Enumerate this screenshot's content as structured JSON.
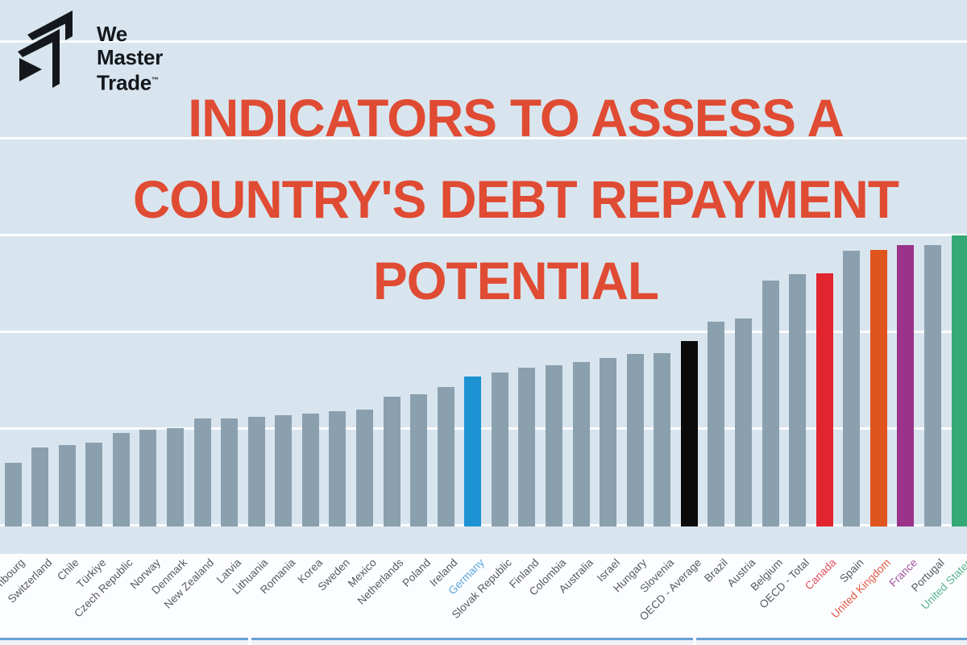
{
  "logo": {
    "word1": "We",
    "word2": "Master",
    "word3": "Trade",
    "tm": "™"
  },
  "title": {
    "line1": "INDICATORS TO ASSESS A",
    "line2": "COUNTRY'S DEBT REPAYMENT",
    "line3": "POTENTIAL",
    "color": "#e04b33"
  },
  "chart_data": {
    "type": "bar",
    "title": "",
    "xlabel": "",
    "ylabel": "",
    "grid": "horizontal white gridlines, unlabeled; y-axis tick labels not visible in the cropped image",
    "axis_note": "values estimated in gridline units: 1 unit = one gridline spacing, baseline = 0",
    "ylim": [
      0,
      3.2
    ],
    "legend_position": "none",
    "categories": [
      "Luxembourg",
      "Switzerland",
      "Chile",
      "Türkiye",
      "Czech Republic",
      "Norway",
      "Denmark",
      "New Zealand",
      "Latvia",
      "Lithuania",
      "Romania",
      "Korea",
      "Sweden",
      "Mexico",
      "Netherlands",
      "Poland",
      "Ireland",
      "Germany",
      "Slovak Republic",
      "Finland",
      "Colombia",
      "Australia",
      "Israel",
      "Hungary",
      "Slovenia",
      "OECD - Average",
      "Brazil",
      "Austria",
      "Belgium",
      "OECD - Total",
      "Canada",
      "Spain",
      "United Kingdom",
      "France",
      "Portugal",
      "United States"
    ],
    "values": [
      0.66,
      0.82,
      0.84,
      0.87,
      0.97,
      1.0,
      1.02,
      1.12,
      1.12,
      1.13,
      1.15,
      1.17,
      1.19,
      1.21,
      1.34,
      1.37,
      1.44,
      1.55,
      1.59,
      1.64,
      1.67,
      1.7,
      1.74,
      1.78,
      1.79,
      1.92,
      2.12,
      2.15,
      2.54,
      2.61,
      2.62,
      2.85,
      2.86,
      2.91,
      2.91,
      3.01
    ],
    "default_bar_color": "#8ba0af",
    "default_label_color": "#55595e",
    "highlighted_bars": {
      "Germany": "#1d93d4",
      "OECD - Average": "#0b0b0b",
      "Canada": "#e2242f",
      "United Kingdom": "#e0541e",
      "France": "#9a3389",
      "United States": "#35a877"
    },
    "highlighted_labels": {
      "Germany": "#5aa5dc",
      "Canada": "#e0525f",
      "United Kingdom": "#e25a43",
      "France": "#a1509a",
      "United States": "#55b389"
    }
  },
  "colors": {
    "background": "#d9e5ee",
    "gridline": "#ffffff",
    "title": "#e04b33",
    "logo": "#14181c",
    "footer_line": "#68a1d4",
    "footer_strip": "#edf2f7"
  }
}
